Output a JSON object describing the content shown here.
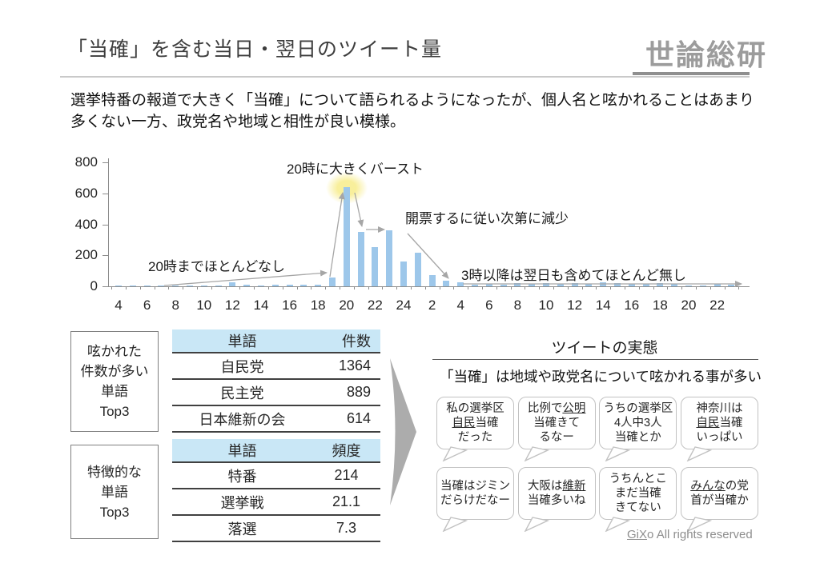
{
  "page": {
    "title": "「当確」を含む当日・翌日のツイート量",
    "logo": "世論総研",
    "lead": {
      "line1": "選挙特番の報道で大きく「当確」について語られるようになったが、個人名と呟かれることはあまり",
      "line2": "多くない一方、政党名や地域と相性が良い模様。"
    },
    "footer": {
      "brand_underlined": "GiX",
      "brand_rest": "o",
      "text": " All rights reserved"
    }
  },
  "colors": {
    "bar": "#9DC7EA",
    "table_header_fill": "#C9E7F6",
    "glow": "#F7EFA4",
    "arrow": "#A6A6A6",
    "big_arrow": "#ACACAC"
  },
  "chart_data": {
    "type": "bar",
    "title": "「当確」を含む当日・翌日のツイート量（時間別件数）",
    "ylim": [
      0,
      800
    ],
    "y_tick_labels": [
      "800",
      "600",
      "400",
      "200",
      "0"
    ],
    "y_tick_values": [
      800,
      600,
      400,
      200,
      0
    ],
    "x_tick_labels": [
      "4",
      "6",
      "8",
      "10",
      "12",
      "14",
      "16",
      "18",
      "20",
      "22",
      "24",
      "2",
      "4",
      "6",
      "8",
      "10",
      "12",
      "14",
      "16",
      "18",
      "20",
      "22"
    ],
    "hours": [
      4,
      5,
      6,
      7,
      8,
      9,
      10,
      11,
      12,
      13,
      14,
      15,
      16,
      17,
      18,
      19,
      20,
      21,
      22,
      23,
      24,
      1,
      2,
      3,
      4,
      5,
      6,
      7,
      8,
      9,
      10,
      11,
      12,
      13,
      14,
      15,
      16,
      17,
      18,
      19,
      20,
      21,
      22,
      23
    ],
    "values": [
      3,
      2,
      2,
      3,
      4,
      4,
      5,
      6,
      25,
      12,
      6,
      10,
      12,
      12,
      8,
      55,
      640,
      350,
      255,
      360,
      160,
      215,
      70,
      35,
      25,
      10,
      18,
      10,
      22,
      14,
      20,
      14,
      22,
      16,
      26,
      22,
      14,
      16,
      22,
      16,
      6,
      5,
      14,
      8
    ],
    "legend": [],
    "grid": false,
    "annotations": [
      "20時までほとんどなし",
      "20時に大きくバースト",
      "開票するに従い次第に減少",
      "3時以降は翌日も含めてほとんど無し"
    ]
  },
  "panels": {
    "top_words": {
      "side_label_lines": [
        "呟かれた",
        "件数が多い",
        "単語",
        "Top3"
      ],
      "headers": [
        "単語",
        "件数"
      ],
      "rows": [
        [
          "自民党",
          "1364"
        ],
        [
          "民主党",
          "889"
        ],
        [
          "日本維新の会",
          "614"
        ]
      ]
    },
    "feature_words": {
      "side_label_lines": [
        "特徴的な",
        "単語",
        "Top3"
      ],
      "headers": [
        "単語",
        "頻度"
      ],
      "rows": [
        [
          "特番",
          "214"
        ],
        [
          "選挙戦",
          "21.1"
        ],
        [
          "落選",
          "7.3"
        ]
      ]
    }
  },
  "tweets": {
    "title": "ツイートの実態",
    "subtitle": "「当確」は地域や政党名について呟かれる事が多い",
    "bubbles": [
      {
        "lines": [
          [
            {
              "t": "私の選挙区"
            }
          ],
          [
            {
              "t": "自民",
              "u": true
            },
            {
              "t": "当確"
            }
          ],
          [
            {
              "t": "だった"
            }
          ]
        ]
      },
      {
        "lines": [
          [
            {
              "t": "比例で"
            },
            {
              "t": "公明",
              "u": true
            }
          ],
          [
            {
              "t": "当確きて"
            }
          ],
          [
            {
              "t": "るなー"
            }
          ]
        ]
      },
      {
        "lines": [
          [
            {
              "t": "うちの選挙区"
            }
          ],
          [
            {
              "t": "4人中3人"
            }
          ],
          [
            {
              "t": "当確とか"
            }
          ]
        ]
      },
      {
        "lines": [
          [
            {
              "t": "神奈川は"
            }
          ],
          [
            {
              "t": "自民",
              "u": true
            },
            {
              "t": "当確"
            }
          ],
          [
            {
              "t": "いっぱい"
            }
          ]
        ]
      },
      {
        "lines": [
          [
            {
              "t": "当確はジミン"
            }
          ],
          [
            {
              "t": "だらけだなー"
            }
          ]
        ]
      },
      {
        "lines": [
          [
            {
              "t": "大阪は"
            },
            {
              "t": "維新",
              "u": true
            }
          ],
          [
            {
              "t": "当確多いね"
            }
          ]
        ]
      },
      {
        "lines": [
          [
            {
              "t": "うちんとこ"
            }
          ],
          [
            {
              "t": "まだ当確"
            }
          ],
          [
            {
              "t": "きてない"
            }
          ]
        ]
      },
      {
        "lines": [
          [
            {
              "t": "みんな",
              "u": true
            },
            {
              "t": "の党"
            }
          ],
          [
            {
              "t": "首が当確か"
            }
          ]
        ]
      }
    ]
  }
}
